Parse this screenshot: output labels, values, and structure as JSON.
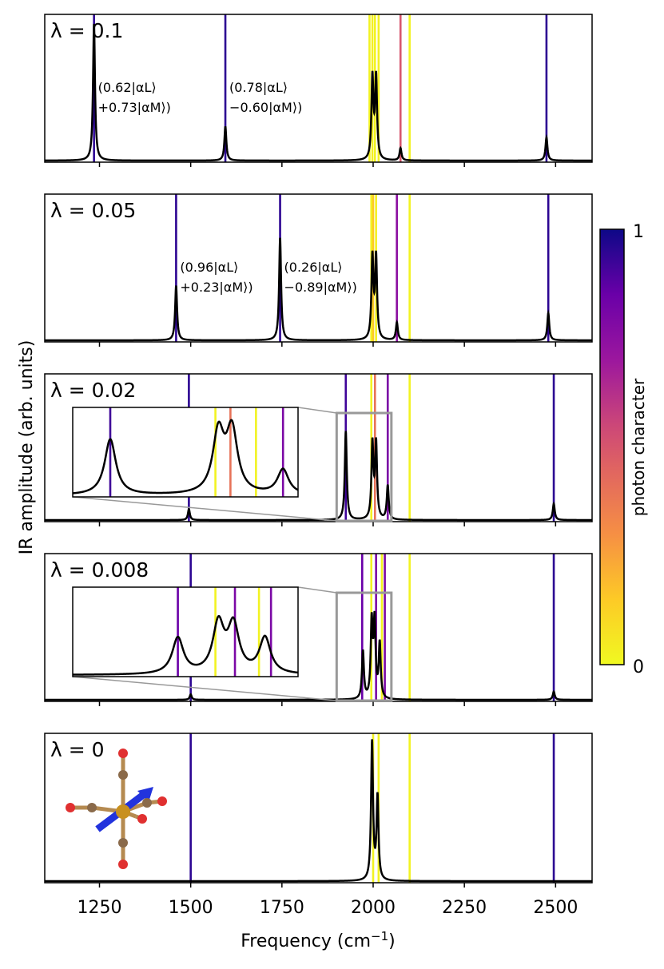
{
  "figure": {
    "ylabel": "IR amplitude (arb. units)",
    "xlabel": "Frequency (cm",
    "xlabel_sup": "−1",
    "xlabel_close": ")",
    "colorbar_label": "photon character",
    "colorbar_ticks": [
      "1",
      "0"
    ]
  },
  "chart_data": {
    "type": "line",
    "xlim": [
      1100,
      2600
    ],
    "xticks": [
      1250,
      1500,
      1750,
      2000,
      2250,
      2500
    ],
    "colormap": "plasma_r",
    "colorbar_range": [
      0,
      1
    ],
    "panels": [
      {
        "lambda_label": "λ = 0.1",
        "vlines": [
          {
            "x": 1235,
            "photon": 0.95
          },
          {
            "x": 1595,
            "photon": 0.95
          },
          {
            "x": 1990,
            "photon": 0.02
          },
          {
            "x": 1998,
            "photon": 0.03
          },
          {
            "x": 2005,
            "photon": 0.02
          },
          {
            "x": 2015,
            "photon": 0.03
          },
          {
            "x": 2075,
            "photon": 0.5
          },
          {
            "x": 2100,
            "photon": 0.02
          },
          {
            "x": 2475,
            "photon": 0.95
          }
        ],
        "peaks": [
          {
            "x": 1235,
            "height": 1.0
          },
          {
            "x": 1595,
            "height": 0.25
          },
          {
            "x": 1998,
            "height": 0.6
          },
          {
            "x": 2008,
            "height": 0.6
          },
          {
            "x": 2075,
            "height": 0.09
          },
          {
            "x": 2475,
            "height": 0.17
          }
        ],
        "annotations": [
          {
            "x": 1235,
            "line1": "(0.62|αL⟩",
            "line2": "+0.73|αM⟩)"
          },
          {
            "x": 1595,
            "line1": "(0.78|αL⟩",
            "line2": "−0.60|αM⟩)"
          }
        ]
      },
      {
        "lambda_label": "λ = 0.05",
        "vlines": [
          {
            "x": 1460,
            "photon": 0.95
          },
          {
            "x": 1745,
            "photon": 0.95
          },
          {
            "x": 1995,
            "photon": 0.02
          },
          {
            "x": 2000,
            "photon": 0.15
          },
          {
            "x": 2008,
            "photon": 0.03
          },
          {
            "x": 2065,
            "photon": 0.75
          },
          {
            "x": 2100,
            "photon": 0.02
          },
          {
            "x": 2480,
            "photon": 0.95
          }
        ],
        "peaks": [
          {
            "x": 1460,
            "height": 0.4
          },
          {
            "x": 1745,
            "height": 0.75
          },
          {
            "x": 1998,
            "height": 0.6
          },
          {
            "x": 2008,
            "height": 0.6
          },
          {
            "x": 2065,
            "height": 0.13
          },
          {
            "x": 2480,
            "height": 0.2
          }
        ],
        "annotations": [
          {
            "x": 1460,
            "line1": "(0.96|αL⟩",
            "line2": "+0.23|αM⟩)"
          },
          {
            "x": 1745,
            "line1": "(0.26|αL⟩",
            "line2": "−0.89|αM⟩)"
          }
        ]
      },
      {
        "lambda_label": "λ = 0.02",
        "vlines": [
          {
            "x": 1495,
            "photon": 0.95
          },
          {
            "x": 1925,
            "photon": 0.92
          },
          {
            "x": 1995,
            "photon": 0.02
          },
          {
            "x": 2005,
            "photon": 0.4
          },
          {
            "x": 2040,
            "photon": 0.8
          },
          {
            "x": 2100,
            "photon": 0.02
          },
          {
            "x": 2495,
            "photon": 0.95
          }
        ],
        "peaks": [
          {
            "x": 1495,
            "height": 0.08
          },
          {
            "x": 1925,
            "height": 0.65
          },
          {
            "x": 1998,
            "height": 0.55
          },
          {
            "x": 2008,
            "height": 0.55
          },
          {
            "x": 2040,
            "height": 0.25
          },
          {
            "x": 2495,
            "height": 0.12
          }
        ],
        "inset": {
          "xrange": [
            1900,
            2050
          ],
          "vlines": [
            {
              "x": 1925,
              "photon": 0.92
            },
            {
              "x": 1995,
              "photon": 0.02
            },
            {
              "x": 2005,
              "photon": 0.4
            },
            {
              "x": 2022,
              "photon": 0.02
            },
            {
              "x": 2040,
              "photon": 0.8
            }
          ],
          "peaks": [
            {
              "x": 1925,
              "height": 0.85
            },
            {
              "x": 1997,
              "height": 0.92
            },
            {
              "x": 2006,
              "height": 0.95
            },
            {
              "x": 2040,
              "height": 0.38
            }
          ]
        }
      },
      {
        "lambda_label": "λ = 0.008",
        "vlines": [
          {
            "x": 1500,
            "photon": 0.95
          },
          {
            "x": 1970,
            "photon": 0.85
          },
          {
            "x": 1995,
            "photon": 0.02
          },
          {
            "x": 2008,
            "photon": 0.8
          },
          {
            "x": 2024,
            "photon": 0.02
          },
          {
            "x": 2032,
            "photon": 0.8
          },
          {
            "x": 2100,
            "photon": 0.02
          },
          {
            "x": 2495,
            "photon": 0.95
          }
        ],
        "peaks": [
          {
            "x": 1500,
            "height": 0.04
          },
          {
            "x": 1972,
            "height": 0.35
          },
          {
            "x": 1996,
            "height": 0.55
          },
          {
            "x": 2004,
            "height": 0.55
          },
          {
            "x": 2018,
            "height": 0.4
          },
          {
            "x": 2495,
            "height": 0.06
          }
        ],
        "inset": {
          "xrange": [
            1900,
            2050
          ],
          "vlines": [
            {
              "x": 1970,
              "photon": 0.85
            },
            {
              "x": 1995,
              "photon": 0.02
            },
            {
              "x": 2008,
              "photon": 0.8
            },
            {
              "x": 2024,
              "photon": 0.02
            },
            {
              "x": 2032,
              "photon": 0.8
            }
          ],
          "peaks": [
            {
              "x": 1970,
              "height": 0.55
            },
            {
              "x": 1997,
              "height": 0.75
            },
            {
              "x": 2007,
              "height": 0.72
            },
            {
              "x": 2028,
              "height": 0.55
            }
          ]
        }
      },
      {
        "lambda_label": "λ = 0",
        "vlines": [
          {
            "x": 1500,
            "photon": 0.95
          },
          {
            "x": 2000,
            "photon": 0.02
          },
          {
            "x": 2015,
            "photon": 0.02
          },
          {
            "x": 2100,
            "photon": 0.02
          },
          {
            "x": 2495,
            "photon": 0.95
          }
        ],
        "peaks": [
          {
            "x": 1997,
            "height": 1.0
          },
          {
            "x": 2012,
            "height": 0.6
          }
        ]
      }
    ]
  }
}
